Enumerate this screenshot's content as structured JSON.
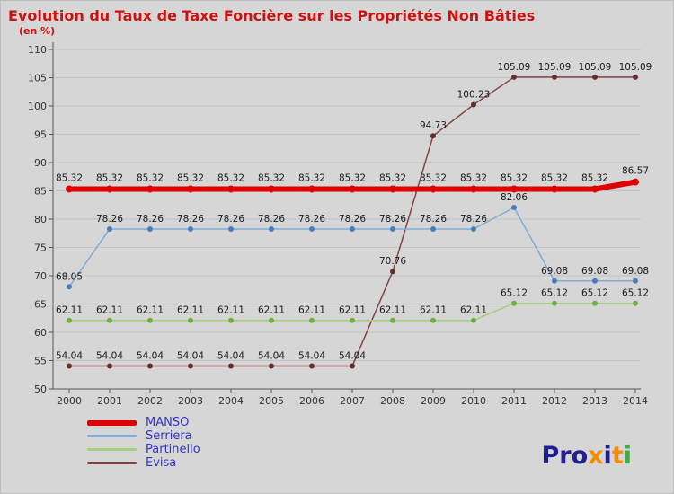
{
  "title": "Evolution du Taux de Taxe Foncière sur les Propriétés Non Bâties",
  "subtitle": "(en %)",
  "colors": {
    "background": "#d6d6d6",
    "title": "#cc1111",
    "axis": "#555555",
    "grid": "#c3c3c3",
    "tick_text": "#333333",
    "point_label": "#1a1a1a",
    "legend_text": "#3333cc"
  },
  "chart_data": {
    "type": "line",
    "title": "Evolution du Taux de Taxe Foncière sur les Propriétés Non Bâties",
    "ylabel": "(en %)",
    "xlabel": "",
    "grid": true,
    "legend_position": "bottom-left",
    "ylim": [
      50,
      110
    ],
    "ytick_step": 5,
    "x": [
      2000,
      2001,
      2002,
      2003,
      2004,
      2005,
      2006,
      2007,
      2008,
      2009,
      2010,
      2011,
      2012,
      2013,
      2014
    ],
    "series": [
      {
        "name": "MANSO",
        "color": "#e00000",
        "marker_color": "#e00000",
        "line_width": 6,
        "marker_radius": 4,
        "values": [
          85.32,
          85.32,
          85.32,
          85.32,
          85.32,
          85.32,
          85.32,
          85.32,
          85.32,
          85.32,
          85.32,
          85.32,
          85.32,
          85.32,
          86.57
        ]
      },
      {
        "name": "Serriera",
        "color": "#82abd4",
        "marker_color": "#4a7ebb",
        "line_width": 1.5,
        "marker_radius": 3,
        "values": [
          68.05,
          78.26,
          78.26,
          78.26,
          78.26,
          78.26,
          78.26,
          78.26,
          78.26,
          78.26,
          78.26,
          82.06,
          69.08,
          69.08,
          69.08
        ]
      },
      {
        "name": "Partinello",
        "color": "#a5cf7c",
        "marker_color": "#6fae3f",
        "line_width": 1.5,
        "marker_radius": 3,
        "values": [
          62.11,
          62.11,
          62.11,
          62.11,
          62.11,
          62.11,
          62.11,
          62.11,
          62.11,
          62.11,
          62.11,
          65.12,
          65.12,
          65.12,
          65.12
        ]
      },
      {
        "name": "Evisa",
        "color": "#824545",
        "marker_color": "#63302f",
        "line_width": 1.5,
        "marker_radius": 3,
        "values": [
          54.04,
          54.04,
          54.04,
          54.04,
          54.04,
          54.04,
          54.04,
          54.04,
          70.76,
          94.73,
          100.23,
          105.09,
          105.09,
          105.09,
          105.09
        ]
      }
    ]
  },
  "legend": {
    "items": [
      {
        "label": "MANSO",
        "color": "#e00000",
        "thick": true
      },
      {
        "label": "Serriera",
        "color": "#82abd4",
        "thick": false
      },
      {
        "label": "Partinello",
        "color": "#a5cf7c",
        "thick": false
      },
      {
        "label": "Evisa",
        "color": "#824545",
        "thick": false
      }
    ]
  },
  "logo": {
    "letters": [
      {
        "ch": "P",
        "color": "#20208f"
      },
      {
        "ch": "r",
        "color": "#20208f"
      },
      {
        "ch": "o",
        "color": "#20208f"
      },
      {
        "ch": "x",
        "color": "#f28c00"
      },
      {
        "ch": "i",
        "color": "#20208f"
      },
      {
        "ch": "t",
        "color": "#f28c00"
      },
      {
        "ch": "i",
        "color": "#44aa44"
      }
    ]
  }
}
